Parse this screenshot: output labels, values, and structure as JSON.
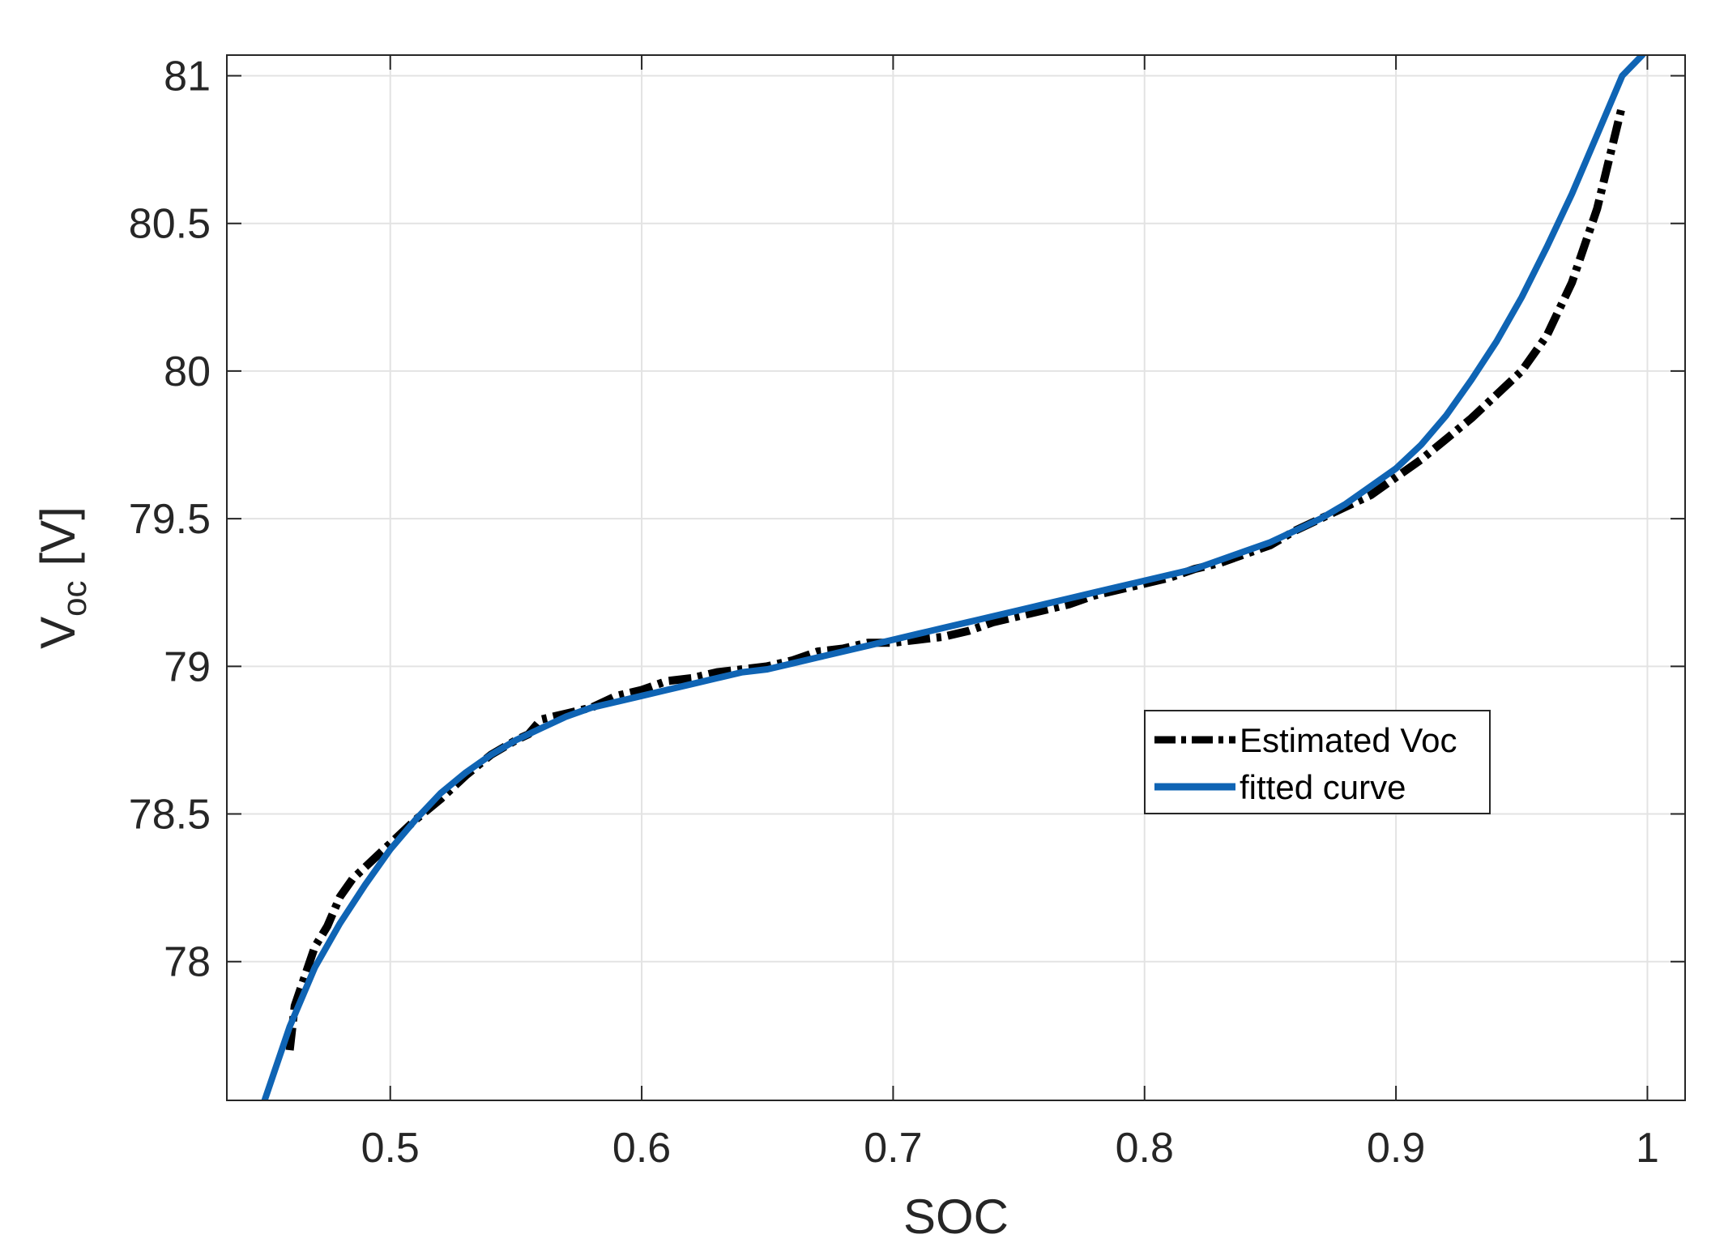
{
  "chart_data": {
    "type": "line",
    "title": "",
    "xlabel": "SOC",
    "ylabel": {
      "base": "V",
      "subscript": "oc",
      "unit": "[V]"
    },
    "xlim": [
      0.435,
      1.015
    ],
    "ylim": [
      77.53,
      81.07
    ],
    "xticks": [
      0.5,
      0.6,
      0.7,
      0.8,
      0.9,
      1.0
    ],
    "xtick_labels": [
      "0.5",
      "0.6",
      "0.7",
      "0.8",
      "0.9",
      "1"
    ],
    "yticks": [
      78,
      78.5,
      79,
      79.5,
      80,
      80.5,
      81
    ],
    "ytick_labels": [
      "78",
      "78.5",
      "79",
      "79.5",
      "80",
      "80.5",
      "81"
    ],
    "grid": true,
    "legend_position": "center-right",
    "series": [
      {
        "name": "Estimated Voc",
        "style": "dash-dot",
        "color": "#000000",
        "x": [
          0.46,
          0.462,
          0.466,
          0.47,
          0.475,
          0.48,
          0.485,
          0.49,
          0.5,
          0.51,
          0.52,
          0.53,
          0.54,
          0.55,
          0.555,
          0.56,
          0.57,
          0.58,
          0.59,
          0.6,
          0.61,
          0.62,
          0.63,
          0.64,
          0.65,
          0.66,
          0.67,
          0.68,
          0.69,
          0.7,
          0.71,
          0.72,
          0.73,
          0.74,
          0.75,
          0.76,
          0.77,
          0.78,
          0.79,
          0.8,
          0.81,
          0.82,
          0.83,
          0.84,
          0.85,
          0.86,
          0.87,
          0.88,
          0.89,
          0.9,
          0.91,
          0.92,
          0.93,
          0.94,
          0.95,
          0.96,
          0.97,
          0.98,
          0.99
        ],
        "y": [
          77.7,
          77.85,
          77.95,
          78.05,
          78.12,
          78.22,
          78.28,
          78.32,
          78.4,
          78.48,
          78.55,
          78.63,
          78.7,
          78.75,
          78.77,
          78.82,
          78.84,
          78.86,
          78.9,
          78.92,
          78.95,
          78.96,
          78.98,
          78.99,
          79.0,
          79.02,
          79.05,
          79.06,
          79.08,
          79.08,
          79.09,
          79.1,
          79.12,
          79.15,
          79.17,
          79.19,
          79.21,
          79.24,
          79.26,
          79.28,
          79.3,
          79.33,
          79.35,
          79.38,
          79.41,
          79.46,
          79.5,
          79.54,
          79.58,
          79.64,
          79.7,
          79.77,
          79.84,
          79.92,
          80.0,
          80.12,
          80.3,
          80.55,
          80.9
        ]
      },
      {
        "name": "fitted curve",
        "style": "solid",
        "color": "#0f64b4",
        "x": [
          0.45,
          0.46,
          0.47,
          0.48,
          0.49,
          0.5,
          0.51,
          0.52,
          0.53,
          0.54,
          0.55,
          0.56,
          0.57,
          0.58,
          0.59,
          0.6,
          0.61,
          0.62,
          0.63,
          0.64,
          0.65,
          0.66,
          0.67,
          0.68,
          0.69,
          0.7,
          0.71,
          0.72,
          0.73,
          0.74,
          0.75,
          0.76,
          0.77,
          0.78,
          0.79,
          0.8,
          0.81,
          0.82,
          0.83,
          0.84,
          0.85,
          0.86,
          0.87,
          0.88,
          0.89,
          0.9,
          0.91,
          0.92,
          0.93,
          0.94,
          0.95,
          0.96,
          0.97,
          0.98,
          0.99,
          0.998
        ],
        "y": [
          77.53,
          77.78,
          77.98,
          78.13,
          78.26,
          78.38,
          78.48,
          78.57,
          78.64,
          78.7,
          78.75,
          78.79,
          78.83,
          78.86,
          78.88,
          78.9,
          78.92,
          78.94,
          78.96,
          78.98,
          78.99,
          79.01,
          79.03,
          79.05,
          79.07,
          79.09,
          79.11,
          79.13,
          79.15,
          79.17,
          79.19,
          79.21,
          79.23,
          79.25,
          79.27,
          79.29,
          79.31,
          79.33,
          79.36,
          79.39,
          79.42,
          79.46,
          79.5,
          79.55,
          79.61,
          79.67,
          79.75,
          79.85,
          79.97,
          80.1,
          80.25,
          80.42,
          80.6,
          80.8,
          81.0,
          81.07
        ]
      }
    ]
  }
}
